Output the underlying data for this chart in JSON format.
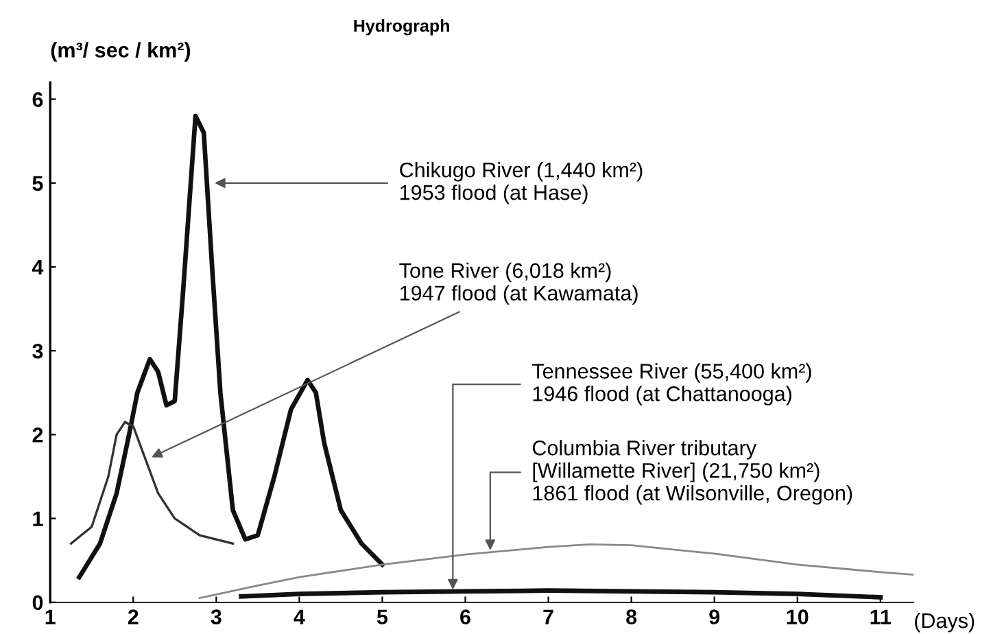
{
  "chart_data": {
    "type": "line",
    "title": "Hydrograph",
    "ylabel": "(m³/ sec / km²)",
    "xlabel": "(Days)",
    "xlim": [
      1,
      11.4
    ],
    "xticks": [
      1,
      2,
      3,
      4,
      5,
      6,
      7,
      8,
      9,
      10,
      11
    ],
    "ylim": [
      0,
      6.2
    ],
    "yticks": [
      0,
      1,
      2,
      3,
      4,
      5,
      6
    ],
    "grid": false,
    "legend": false,
    "marker": "none",
    "line_style": "solid",
    "series": [
      {
        "color": "#111111",
        "x": [
          1.35,
          1.6,
          1.8,
          1.95,
          2.05,
          2.2,
          2.3,
          2.4,
          2.5,
          2.6,
          2.75,
          2.85,
          2.95,
          3.05,
          3.2,
          3.35,
          3.5,
          3.7,
          3.9,
          4.1,
          4.2,
          4.3,
          4.5,
          4.75,
          5.0
        ],
        "values": [
          0.3,
          0.7,
          1.3,
          2.0,
          2.5,
          2.9,
          2.75,
          2.35,
          2.4,
          3.7,
          5.8,
          5.6,
          4.0,
          2.5,
          1.1,
          0.75,
          0.8,
          1.5,
          2.3,
          2.65,
          2.5,
          1.9,
          1.1,
          0.7,
          0.45
        ]
      },
      {
        "color": "#333333",
        "x": [
          1.25,
          1.5,
          1.7,
          1.8,
          1.9,
          2.0,
          2.15,
          2.3,
          2.5,
          2.8,
          3.2
        ],
        "values": [
          0.7,
          0.9,
          1.5,
          2.0,
          2.15,
          2.1,
          1.7,
          1.3,
          1.0,
          0.8,
          0.7
        ]
      },
      {
        "color": "#111111",
        "x": [
          3.3,
          4,
          5,
          6,
          7,
          8,
          9,
          10,
          11
        ],
        "values": [
          0.07,
          0.1,
          0.12,
          0.13,
          0.14,
          0.13,
          0.12,
          0.1,
          0.06
        ]
      },
      {
        "color": "#888888",
        "x": [
          2.8,
          3.5,
          4,
          5,
          6,
          7,
          7.5,
          8,
          9,
          10,
          11,
          11.4
        ],
        "values": [
          0.05,
          0.2,
          0.3,
          0.45,
          0.57,
          0.66,
          0.69,
          0.68,
          0.58,
          0.45,
          0.36,
          0.33
        ]
      }
    ],
    "annotations": [
      {
        "text": "Chikugo River (1,440 km²)\n1953 flood (at Hase)",
        "x": 2.98,
        "y": 5.0
      },
      {
        "text": "Tone River (6,018 km²)\n1947 flood (at Kawamata)",
        "x": 2.22,
        "y": 1.73
      },
      {
        "text": "Tennessee River (55,400 km²)\n1946 flood (at Chattanooga)",
        "x": 5.85,
        "y": 0.15
      },
      {
        "text": "Columbia River tributary\n[Willamette River] (21,750 km²)\n1861 flood (at Wilsonville, Oregon)",
        "x": 6.3,
        "y": 0.62
      }
    ]
  }
}
